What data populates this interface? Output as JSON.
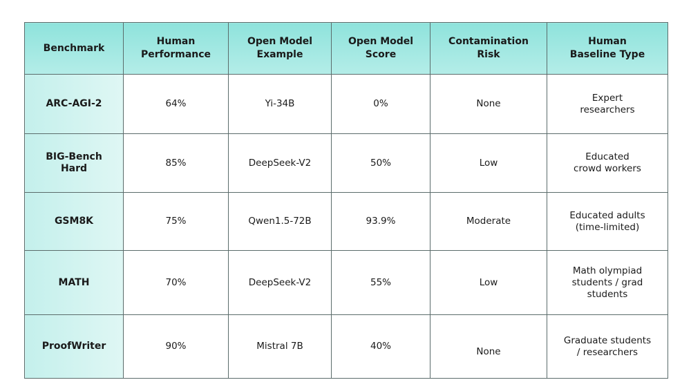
{
  "table": {
    "header": [
      "Benchmark",
      "Human\nPerformance",
      "Open Model\nExample",
      "Open Model\nScore",
      "Contamination\nRisk",
      "Human\nBaseline Type"
    ],
    "rows": [
      [
        "ARC-AGI-2",
        "64%",
        "Yi-34B",
        "0%",
        "None",
        "Expert\nresearchers"
      ],
      [
        "BIG-Bench\nHard",
        "85%",
        "DeepSeek-V2",
        "50%",
        "Low",
        "Educated\ncrowd workers"
      ],
      [
        "GSM8K",
        "75%",
        "Qwen1.5-72B",
        "93.9%",
        "Moderate",
        "Educated adults\n(time-limited)"
      ],
      [
        "MATH",
        "70%",
        "DeepSeek-V2",
        "55%",
        "Low",
        "Math olympiad\nstudents / grad\nstudents"
      ],
      [
        "ProofWriter",
        "90%",
        "Mistral 7B",
        "40%",
        "None",
        "Graduate students\n/ researchers"
      ]
    ]
  }
}
